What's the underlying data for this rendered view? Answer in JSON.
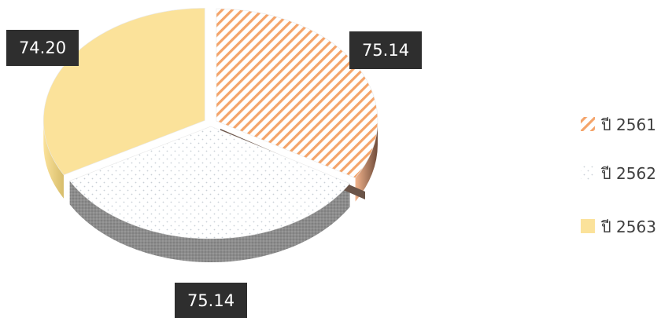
{
  "chart_data": {
    "type": "pie",
    "categories": [
      "ปี 2561",
      "ปี 2562",
      "ปี 2563"
    ],
    "values": [
      75.14,
      75.14,
      74.2
    ],
    "data_labels": [
      "75.14",
      "75.14",
      "74.20"
    ],
    "legend_position": "right",
    "colors": {
      "hatch": "#f4a46a",
      "dots": "#c9cfd6",
      "solid": "#fbe29a",
      "label_bg": "#2e2e2e",
      "label_text": "#ffffff",
      "side": "#8a8a8a"
    }
  }
}
